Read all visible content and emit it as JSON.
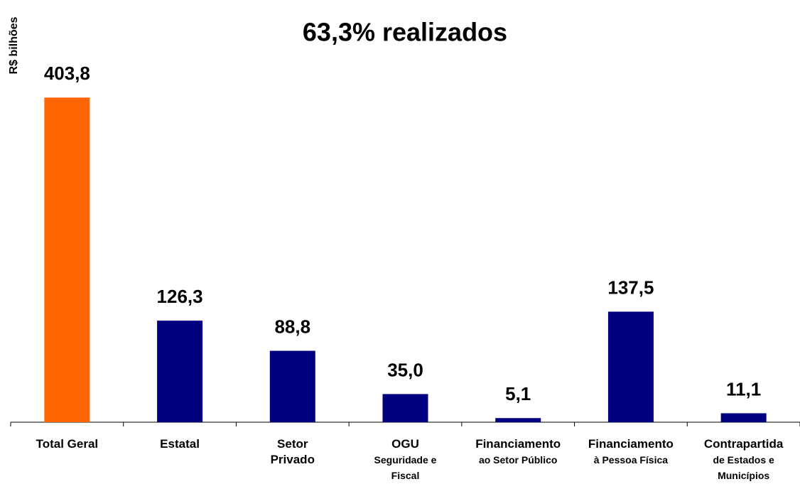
{
  "chart_data": {
    "type": "bar",
    "title": "63,3% realizados",
    "y_label": "R$ bilhões",
    "categories": [
      "Total Geral",
      "Estatal",
      "Setor\nPrivado",
      "OGU",
      "Financiamento",
      "Financiamento",
      "Contrapartida"
    ],
    "category_subtitles": [
      null,
      null,
      null,
      "Seguridade e\nFiscal",
      "ao Setor Público",
      "à Pessoa Física",
      "de Estados e\nMunicípios"
    ],
    "values": [
      403.8,
      126.3,
      88.8,
      35.0,
      5.1,
      137.5,
      11.1
    ],
    "value_labels": [
      "403,8",
      "126,3",
      "88,8",
      "35,0",
      "5,1",
      "137,5",
      "11,1"
    ],
    "colors": [
      "#ff6600",
      "#000080",
      "#000080",
      "#000080",
      "#000080",
      "#000080",
      "#000080"
    ],
    "ylim": [
      0,
      450
    ]
  }
}
